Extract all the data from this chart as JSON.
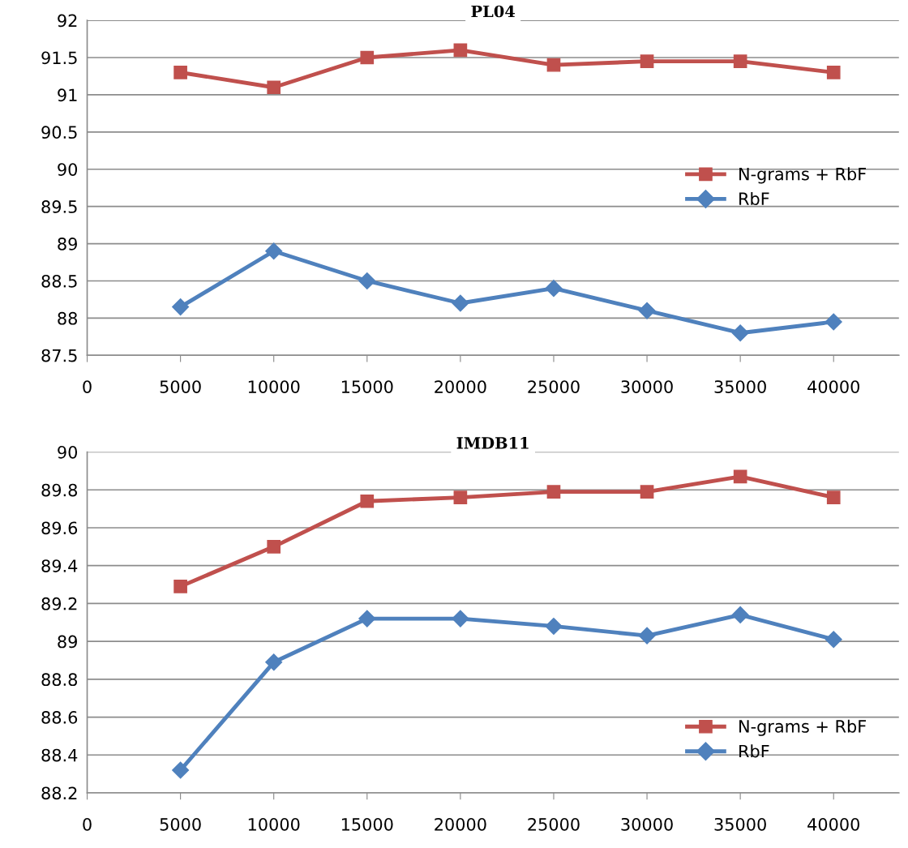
{
  "chart_data": [
    {
      "type": "line",
      "title": "PL04",
      "x": [
        5000,
        10000,
        15000,
        20000,
        25000,
        30000,
        35000,
        40000
      ],
      "xlim": [
        0,
        43500
      ],
      "xticks": [
        0,
        5000,
        10000,
        15000,
        20000,
        25000,
        30000,
        35000,
        40000
      ],
      "ylim": [
        87.5,
        92
      ],
      "yticks": [
        87.5,
        88,
        88.5,
        89,
        89.5,
        90,
        90.5,
        91,
        91.5,
        92
      ],
      "grid": "y",
      "legend": "center right",
      "line_style": "solid",
      "series": [
        {
          "name": "N-grams + RbF",
          "color": "#c0504d",
          "marker": "square",
          "values": [
            91.3,
            91.1,
            91.5,
            91.6,
            91.4,
            91.45,
            91.45,
            91.3
          ]
        },
        {
          "name": "RbF",
          "color": "#4f81bd",
          "marker": "diamond",
          "values": [
            88.15,
            88.9,
            88.5,
            88.2,
            88.4,
            88.1,
            87.8,
            87.95
          ]
        }
      ]
    },
    {
      "type": "line",
      "title": "IMDB11",
      "x": [
        5000,
        10000,
        15000,
        20000,
        25000,
        30000,
        35000,
        40000
      ],
      "xlim": [
        0,
        43500
      ],
      "xticks": [
        0,
        5000,
        10000,
        15000,
        20000,
        25000,
        30000,
        35000,
        40000
      ],
      "ylim": [
        88.2,
        90
      ],
      "yticks": [
        88.2,
        88.4,
        88.6,
        88.8,
        89,
        89.2,
        89.4,
        89.6,
        89.8,
        90
      ],
      "grid": "y",
      "legend": "lower right",
      "line_style": "solid",
      "series": [
        {
          "name": "N-grams + RbF",
          "color": "#c0504d",
          "marker": "square",
          "values": [
            89.29,
            89.5,
            89.74,
            89.76,
            89.79,
            89.79,
            89.87,
            89.76
          ]
        },
        {
          "name": "RbF",
          "color": "#4f81bd",
          "marker": "diamond",
          "values": [
            88.32,
            88.89,
            89.12,
            89.12,
            89.08,
            89.03,
            89.14,
            89.01
          ]
        }
      ]
    }
  ]
}
